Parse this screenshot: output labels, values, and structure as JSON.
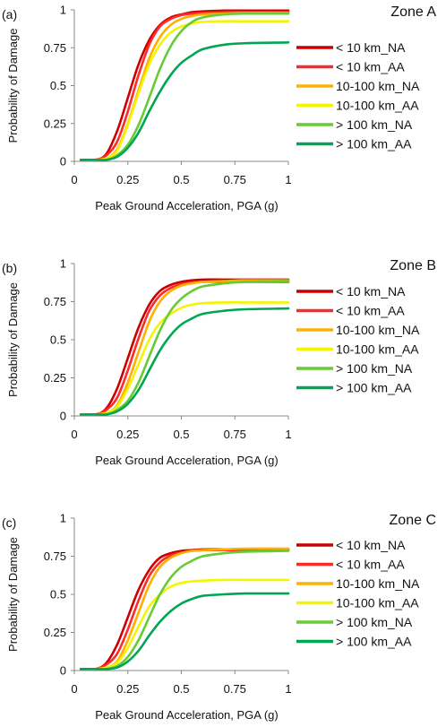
{
  "chart_data": [
    {
      "type": "line",
      "panel_label": "(a)",
      "title": "Zone A",
      "xlabel": "Peak Ground Acceleration, PGA (g)",
      "ylabel": "Probability of Damage",
      "xlim": [
        0,
        1
      ],
      "ylim": [
        0,
        1
      ],
      "xticks": [
        "0",
        "0.25",
        "0.5",
        "0.75",
        "1"
      ],
      "yticks": [
        "0",
        "0.25",
        "0.5",
        "0.75",
        "1"
      ],
      "grid": false,
      "legend": "right",
      "series": [
        {
          "name": "< 10 km_NA",
          "color": "#cc0000",
          "x": [
            0.03,
            0.1,
            0.15,
            0.2,
            0.25,
            0.3,
            0.35,
            0.4,
            0.45,
            0.5,
            0.55,
            0.6,
            0.7,
            0.8,
            1.0
          ],
          "y": [
            0.01,
            0.01,
            0.05,
            0.2,
            0.42,
            0.64,
            0.8,
            0.9,
            0.95,
            0.97,
            0.985,
            0.99,
            0.995,
            0.995,
            0.995
          ]
        },
        {
          "name": "< 10 km_AA",
          "color": "#ff2a2a",
          "x": [
            0.03,
            0.1,
            0.15,
            0.2,
            0.25,
            0.3,
            0.35,
            0.4,
            0.45,
            0.5,
            0.55,
            0.6,
            0.7,
            0.8,
            1.0
          ],
          "y": [
            0.01,
            0.01,
            0.04,
            0.13,
            0.33,
            0.57,
            0.77,
            0.89,
            0.94,
            0.965,
            0.975,
            0.98,
            0.985,
            0.985,
            0.985
          ]
        },
        {
          "name": "10-100 km_NA",
          "color": "#ffb000",
          "x": [
            0.03,
            0.1,
            0.15,
            0.2,
            0.25,
            0.3,
            0.35,
            0.4,
            0.45,
            0.5,
            0.55,
            0.6,
            0.7,
            0.8,
            1.0
          ],
          "y": [
            0.01,
            0.01,
            0.02,
            0.08,
            0.25,
            0.47,
            0.68,
            0.82,
            0.9,
            0.94,
            0.96,
            0.97,
            0.975,
            0.98,
            0.98
          ]
        },
        {
          "name": "10-100 km_AA",
          "color": "#f5f500",
          "x": [
            0.03,
            0.1,
            0.15,
            0.2,
            0.25,
            0.3,
            0.35,
            0.4,
            0.45,
            0.5,
            0.55,
            0.6,
            0.7,
            0.8,
            1.0
          ],
          "y": [
            0.01,
            0.01,
            0.02,
            0.07,
            0.24,
            0.45,
            0.64,
            0.77,
            0.85,
            0.89,
            0.91,
            0.92,
            0.925,
            0.925,
            0.925
          ]
        },
        {
          "name": "> 100 km_NA",
          "color": "#66cc33",
          "x": [
            0.03,
            0.1,
            0.15,
            0.2,
            0.25,
            0.3,
            0.35,
            0.4,
            0.45,
            0.5,
            0.55,
            0.6,
            0.7,
            0.8,
            1.0
          ],
          "y": [
            0.01,
            0.01,
            0.01,
            0.04,
            0.11,
            0.24,
            0.42,
            0.61,
            0.76,
            0.86,
            0.92,
            0.95,
            0.97,
            0.975,
            0.975
          ]
        },
        {
          "name": "> 100 km_AA",
          "color": "#00a651",
          "x": [
            0.03,
            0.1,
            0.15,
            0.2,
            0.25,
            0.3,
            0.35,
            0.4,
            0.45,
            0.5,
            0.55,
            0.6,
            0.7,
            0.8,
            1.0
          ],
          "y": [
            0.01,
            0.01,
            0.01,
            0.03,
            0.09,
            0.19,
            0.33,
            0.46,
            0.57,
            0.65,
            0.7,
            0.74,
            0.77,
            0.78,
            0.785
          ]
        }
      ]
    },
    {
      "type": "line",
      "panel_label": "(b)",
      "title": "Zone B",
      "xlabel": "Peak Ground Acceleration, PGA (g)",
      "ylabel": "Probability of Damage",
      "xlim": [
        0,
        1
      ],
      "ylim": [
        0,
        1
      ],
      "xticks": [
        "0",
        "0.25",
        "0.5",
        "0.75",
        "1"
      ],
      "yticks": [
        "0",
        "0.25",
        "0.5",
        "0.75",
        "1"
      ],
      "grid": false,
      "legend": "right",
      "series": [
        {
          "name": "< 10 km_NA",
          "color": "#cc0000",
          "x": [
            0.03,
            0.1,
            0.15,
            0.2,
            0.25,
            0.3,
            0.35,
            0.4,
            0.45,
            0.5,
            0.55,
            0.6,
            0.7,
            0.8,
            1.0
          ],
          "y": [
            0.01,
            0.01,
            0.05,
            0.18,
            0.38,
            0.58,
            0.73,
            0.82,
            0.86,
            0.88,
            0.89,
            0.895,
            0.895,
            0.895,
            0.895
          ]
        },
        {
          "name": "< 10 km_AA",
          "color": "#ff2a2a",
          "x": [
            0.03,
            0.1,
            0.15,
            0.2,
            0.25,
            0.3,
            0.35,
            0.4,
            0.45,
            0.5,
            0.55,
            0.6,
            0.7,
            0.8,
            1.0
          ],
          "y": [
            0.01,
            0.01,
            0.04,
            0.12,
            0.3,
            0.51,
            0.69,
            0.79,
            0.84,
            0.865,
            0.875,
            0.88,
            0.88,
            0.88,
            0.88
          ]
        },
        {
          "name": "10-100 km_NA",
          "color": "#ffb000",
          "x": [
            0.03,
            0.1,
            0.15,
            0.2,
            0.25,
            0.3,
            0.35,
            0.4,
            0.45,
            0.5,
            0.55,
            0.6,
            0.7,
            0.8,
            1.0
          ],
          "y": [
            0.01,
            0.01,
            0.02,
            0.07,
            0.22,
            0.42,
            0.62,
            0.75,
            0.82,
            0.855,
            0.87,
            0.88,
            0.885,
            0.89,
            0.89
          ]
        },
        {
          "name": "10-100 km_AA",
          "color": "#f5f500",
          "x": [
            0.03,
            0.1,
            0.15,
            0.2,
            0.25,
            0.3,
            0.35,
            0.4,
            0.45,
            0.5,
            0.55,
            0.6,
            0.7,
            0.8,
            1.0
          ],
          "y": [
            0.01,
            0.01,
            0.02,
            0.06,
            0.18,
            0.34,
            0.5,
            0.61,
            0.67,
            0.71,
            0.73,
            0.74,
            0.745,
            0.745,
            0.745
          ]
        },
        {
          "name": "> 100 km_NA",
          "color": "#66cc33",
          "x": [
            0.03,
            0.1,
            0.15,
            0.2,
            0.25,
            0.3,
            0.35,
            0.4,
            0.45,
            0.5,
            0.55,
            0.6,
            0.7,
            0.8,
            1.0
          ],
          "y": [
            0.01,
            0.01,
            0.01,
            0.04,
            0.1,
            0.22,
            0.39,
            0.56,
            0.69,
            0.77,
            0.82,
            0.85,
            0.87,
            0.88,
            0.885
          ]
        },
        {
          "name": "> 100 km_AA",
          "color": "#00a651",
          "x": [
            0.03,
            0.1,
            0.15,
            0.2,
            0.25,
            0.3,
            0.35,
            0.4,
            0.45,
            0.5,
            0.55,
            0.6,
            0.7,
            0.8,
            1.0
          ],
          "y": [
            0.01,
            0.01,
            0.01,
            0.03,
            0.08,
            0.17,
            0.3,
            0.43,
            0.53,
            0.6,
            0.64,
            0.67,
            0.69,
            0.7,
            0.705
          ]
        }
      ]
    },
    {
      "type": "line",
      "panel_label": "(c)",
      "title": "Zone C",
      "xlabel": "Peak Ground Acceleration, PGA (g)",
      "ylabel": "Probability of Damage",
      "xlim": [
        0,
        1
      ],
      "ylim": [
        0,
        1
      ],
      "xticks": [
        "0",
        "0.25",
        "0.5",
        "0.75",
        "1"
      ],
      "yticks": [
        "0",
        "0.25",
        "0.5",
        "0.75",
        "1"
      ],
      "grid": false,
      "legend": "right",
      "series": [
        {
          "name": "< 10 km_NA",
          "color": "#cc0000",
          "x": [
            0.03,
            0.1,
            0.15,
            0.2,
            0.25,
            0.3,
            0.35,
            0.4,
            0.45,
            0.5,
            0.55,
            0.6,
            0.7,
            0.8,
            1.0
          ],
          "y": [
            0.01,
            0.01,
            0.05,
            0.17,
            0.35,
            0.53,
            0.66,
            0.74,
            0.77,
            0.785,
            0.79,
            0.795,
            0.795,
            0.795,
            0.795
          ]
        },
        {
          "name": "< 10 km_AA",
          "color": "#ff2a2a",
          "x": [
            0.03,
            0.1,
            0.15,
            0.2,
            0.25,
            0.3,
            0.35,
            0.4,
            0.45,
            0.5,
            0.55,
            0.6,
            0.7,
            0.8,
            1.0
          ],
          "y": [
            0.01,
            0.01,
            0.04,
            0.11,
            0.27,
            0.46,
            0.62,
            0.71,
            0.755,
            0.775,
            0.785,
            0.79,
            0.79,
            0.79,
            0.79
          ]
        },
        {
          "name": "10-100 km_NA",
          "color": "#ffb000",
          "x": [
            0.03,
            0.1,
            0.15,
            0.2,
            0.25,
            0.3,
            0.35,
            0.4,
            0.45,
            0.5,
            0.55,
            0.6,
            0.7,
            0.8,
            1.0
          ],
          "y": [
            0.01,
            0.01,
            0.02,
            0.06,
            0.2,
            0.38,
            0.56,
            0.68,
            0.74,
            0.77,
            0.785,
            0.79,
            0.795,
            0.8,
            0.8
          ]
        },
        {
          "name": "10-100 km_AA",
          "color": "#f5f500",
          "x": [
            0.03,
            0.1,
            0.15,
            0.2,
            0.25,
            0.3,
            0.35,
            0.4,
            0.45,
            0.5,
            0.55,
            0.6,
            0.7,
            0.8,
            1.0
          ],
          "y": [
            0.01,
            0.01,
            0.02,
            0.05,
            0.15,
            0.29,
            0.42,
            0.5,
            0.55,
            0.575,
            0.585,
            0.59,
            0.595,
            0.595,
            0.595
          ]
        },
        {
          "name": "> 100 km_NA",
          "color": "#66cc33",
          "x": [
            0.03,
            0.1,
            0.15,
            0.2,
            0.25,
            0.3,
            0.35,
            0.4,
            0.45,
            0.5,
            0.55,
            0.6,
            0.7,
            0.8,
            1.0
          ],
          "y": [
            0.01,
            0.01,
            0.01,
            0.03,
            0.09,
            0.2,
            0.35,
            0.5,
            0.61,
            0.68,
            0.72,
            0.75,
            0.77,
            0.78,
            0.785
          ]
        },
        {
          "name": "> 100 km_AA",
          "color": "#00a651",
          "x": [
            0.03,
            0.1,
            0.15,
            0.2,
            0.25,
            0.3,
            0.35,
            0.4,
            0.45,
            0.5,
            0.55,
            0.6,
            0.7,
            0.8,
            1.0
          ],
          "y": [
            0.01,
            0.01,
            0.01,
            0.02,
            0.06,
            0.13,
            0.23,
            0.32,
            0.39,
            0.44,
            0.47,
            0.49,
            0.5,
            0.505,
            0.505
          ]
        }
      ]
    }
  ]
}
